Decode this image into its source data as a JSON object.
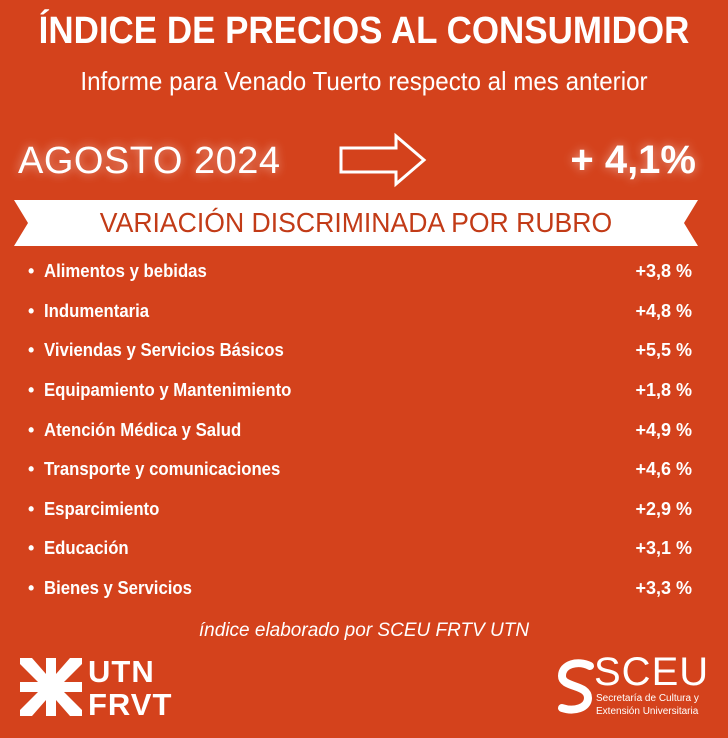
{
  "header": {
    "title": "ÍNDICE DE PRECIOS AL CONSUMIDOR",
    "subtitle": "Informe para Venado Tuerto respecto al mes anterior"
  },
  "summary": {
    "period": "AGOSTO 2024",
    "total": "+ 4,1%",
    "arrow_icon": "right-arrow-outline-icon"
  },
  "banner": {
    "label": "VARIACIÓN DISCRIMINADA POR RUBRO"
  },
  "items": [
    {
      "label": "Alimentos y bebidas",
      "value": "+3,8 %"
    },
    {
      "label": "Indumentaria",
      "value": "+4,8 %"
    },
    {
      "label": "Viviendas y Servicios Básicos",
      "value": "+5,5 %"
    },
    {
      "label": "Equipamiento y Mantenimiento",
      "value": "+1,8 %"
    },
    {
      "label": "Atención Médica y Salud",
      "value": "+4,9 %"
    },
    {
      "label": "Transporte y comunicaciones",
      "value": "+4,6 %"
    },
    {
      "label": "Esparcimiento",
      "value": "+2,9 %"
    },
    {
      "label": "Educación",
      "value": "+3,1 %"
    },
    {
      "label": "Bienes y Servicios",
      "value": "+3,3 %"
    }
  ],
  "footer": {
    "note": "índice elaborado por SCEU FRTV UTN",
    "utn_line1": "UTN",
    "utn_line2": "FRVT",
    "sceu_title": "SCEU",
    "sceu_sub_line1": "Secretaría de Cultura y",
    "sceu_sub_line2": "Extensión Universitaria"
  },
  "colors": {
    "background": "#d4421c",
    "text": "#ffffff",
    "banner_text": "#c23b17"
  }
}
